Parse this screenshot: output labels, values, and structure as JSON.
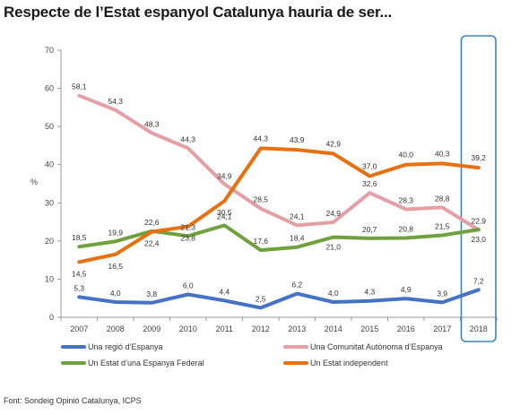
{
  "header": {
    "title": "Respecte de l’Estat espanyol Catalunya hauria de ser..."
  },
  "footer": {
    "source": "Font: Sondeig Opinió Catalunya, ICPS"
  },
  "chart_data": {
    "type": "line",
    "x": [
      "2007",
      "2008",
      "2009",
      "2010",
      "2011",
      "2012",
      "2013",
      "2014",
      "2015",
      "2016",
      "2017",
      "2018"
    ],
    "ylabel": "%",
    "xlabel": "",
    "ylim": [
      0,
      70
    ],
    "yticks": [
      0,
      10,
      20,
      30,
      40,
      50,
      60,
      70
    ],
    "grid": false,
    "legend": "bottom",
    "highlight": "2018",
    "series": [
      {
        "name": "Una regió d’Espanya",
        "color": "#4472C4",
        "values": [
          5.3,
          4.0,
          3.8,
          6.0,
          4.4,
          2.5,
          6.2,
          4.0,
          4.3,
          4.9,
          3.9,
          7.2
        ],
        "labels": [
          "5,3",
          "4,0",
          "3,8",
          "6,0",
          "4,4",
          "2,5",
          "6,2",
          "4,0",
          "4,3",
          "4,9",
          "3,9",
          "7,2"
        ]
      },
      {
        "name": "Una Comunitat Autònoma d’Espanya",
        "color": "#E6A0A5",
        "values": [
          58.1,
          54.3,
          48.3,
          44.3,
          34.9,
          28.5,
          24.1,
          24.9,
          32.6,
          28.3,
          28.8,
          22.9
        ],
        "labels": [
          "58,1",
          "54,3",
          "48,3",
          "44,3",
          "34,9",
          "28,5",
          "24,1",
          "24,9",
          "32,6",
          "28,3",
          "28,8",
          "22,9"
        ]
      },
      {
        "name": "Un Estat d’una Espanya Federal",
        "color": "#70A13F",
        "values": [
          18.5,
          19.9,
          22.6,
          21.3,
          24.1,
          17.6,
          18.4,
          21.0,
          20.7,
          20.8,
          21.5,
          23.0
        ],
        "labels": [
          "18,5",
          "19,9",
          "22,6",
          "21,3",
          "24,1",
          "17,6",
          "18,4",
          "21,0",
          "20,7",
          "20,8",
          "21,5",
          "23,0"
        ]
      },
      {
        "name": "Un Estat independent",
        "color": "#E8700F",
        "values": [
          14.5,
          16.5,
          22.4,
          23.8,
          30.5,
          44.3,
          43.9,
          42.9,
          37.0,
          40.0,
          40.3,
          39.2
        ],
        "labels": [
          "14,5",
          "16,5",
          "22,4",
          "23,8",
          "30,5",
          "44,3",
          "43,9",
          "42,9",
          "37,0",
          "40,0",
          "40,3",
          "39,2"
        ]
      }
    ]
  }
}
